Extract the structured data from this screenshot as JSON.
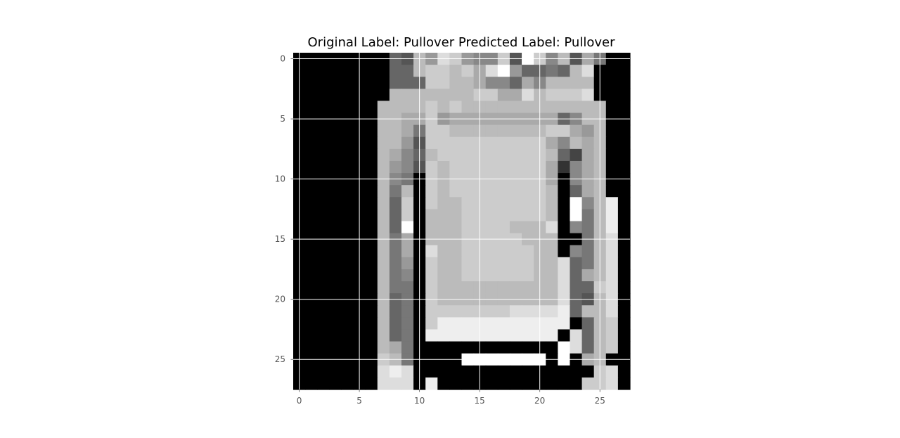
{
  "chart_data": {
    "type": "heatmap",
    "title": "Original Label: Pullover  Predicted Label: Pullover",
    "colormap": "gray",
    "grid": true,
    "rows": 28,
    "cols": 28,
    "x_ticks": [
      0,
      5,
      10,
      15,
      20,
      25
    ],
    "y_ticks": [
      0,
      5,
      10,
      15,
      20,
      25
    ],
    "xlim": [
      -0.5,
      27.5
    ],
    "ylim": [
      27.5,
      -0.5
    ],
    "pixel_rows": [
      "0000000065b9dc988c5fc8b5a700",
      "0000000066bccbcadf96676bd000",
      "00000000666ccbba886a8bbbb000",
      "00000000bbbbbbbccaadbcccd000",
      "0000000bbbbcbcbbbbbbbbbbbb00",
      "0000000bbaac9aaaaaaaaa68bb00",
      "0000000bba7ccbbbbbbbbcca9b00",
      "0000000bb95cccccccccca8bab00",
      "0000000ba86bcccccccccb64ab00",
      "0000000b985cbcccccccca38ab00",
      "0000000b870cbcccccccca08ab00",
      "0000000b7b0cbccccccccb06ab00",
      "0000000b6c0cbbcccccccb0f8be0",
      "0000000b6c0bbbcccccccb0f7be0",
      "0000000b6f0bbbccccbbbd087be0",
      "0000000b7a0bbbcccccbbb007bd0",
      "0000000b7a0dbbccccccbb087bd0",
      "0000000b790cbbccccccbbd67bd0",
      "0000000b780cbbccccccbbd6abd0",
      "0000000b770cbbbbbbbbbbd66cd0",
      "0000000b670cbbbbbbbbbbd65bd0",
      "0000000b670cccccccdddde6bbd0",
      "0000000b670ceeeeeeeeeee06bc0",
      "0000000b670eeeeeeeeeee0d6bc0",
      "0000000ba7000000000000fd6bc0",
      "0000000cb70000fffffff0f0ab00",
      "0000000ded000000000000000cd0",
      "0000000ddd0e000000000000ccd0"
    ]
  }
}
